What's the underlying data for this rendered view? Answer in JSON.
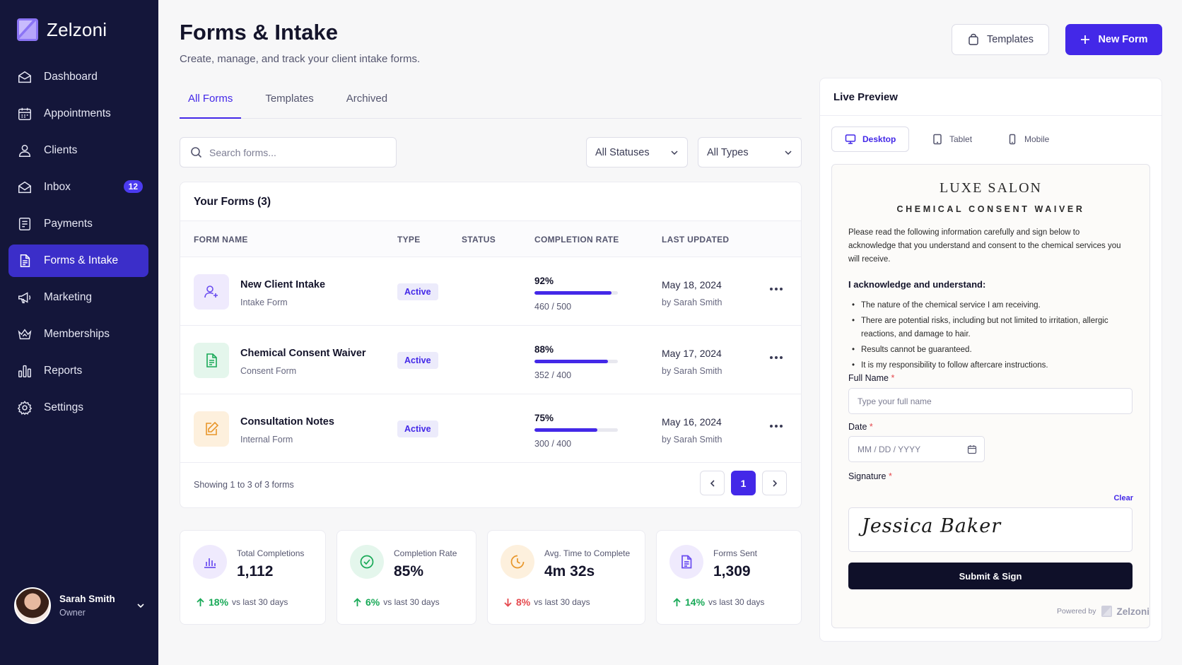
{
  "brand": {
    "name": "Zelzoni"
  },
  "sidebar": {
    "items": [
      {
        "label": "Dashboard",
        "icon": "dashboard-icon"
      },
      {
        "label": "Appointments",
        "icon": "calendar-icon"
      },
      {
        "label": "Clients",
        "icon": "user-icon"
      },
      {
        "label": "Inbox",
        "icon": "inbox-icon",
        "badge": "12"
      },
      {
        "label": "Payments",
        "icon": "receipt-icon"
      },
      {
        "label": "Forms & Intake",
        "icon": "document-icon",
        "active": true
      },
      {
        "label": "Marketing",
        "icon": "megaphone-icon"
      },
      {
        "label": "Memberships",
        "icon": "crown-icon"
      },
      {
        "label": "Reports",
        "icon": "bar-chart-icon"
      },
      {
        "label": "Settings",
        "icon": "gear-icon"
      }
    ]
  },
  "user": {
    "name": "Sarah Smith",
    "role": "Owner"
  },
  "header": {
    "title": "Forms & Intake",
    "subtitle": "Create, manage, and track your client intake forms.",
    "templates_label": "Templates",
    "new_form_label": "New Form"
  },
  "tabs": [
    {
      "label": "All Forms",
      "active": true
    },
    {
      "label": "Templates"
    },
    {
      "label": "Archived"
    }
  ],
  "filters": {
    "search_placeholder": "Search forms...",
    "status_selected": "All Statuses",
    "type_selected": "All Types"
  },
  "forms_table": {
    "title": "Your Forms (3)",
    "columns": [
      "FORM NAME",
      "TYPE",
      "STATUS",
      "COMPLETION RATE",
      "LAST UPDATED"
    ],
    "rows": [
      {
        "name": "New Client Intake",
        "type": "Intake Form",
        "status": "Active",
        "rate_label": "92%",
        "rate": 0.92,
        "count": "460 / 500",
        "date": "May 18, 2024",
        "by": "by Sarah Smith",
        "icon": "user-plus-icon",
        "accent": "#6a4cf0",
        "bg": "#efeafd"
      },
      {
        "name": "Chemical Consent Waiver",
        "type": "Consent Form",
        "status": "Active",
        "rate_label": "88%",
        "rate": 0.88,
        "count": "352 / 400",
        "date": "May 17, 2024",
        "by": "by Sarah Smith",
        "icon": "file-text-icon",
        "accent": "#18a957",
        "bg": "#e4f6ec"
      },
      {
        "name": "Consultation Notes",
        "type": "Internal Form",
        "status": "Active",
        "rate_label": "75%",
        "rate": 0.75,
        "count": "300 / 400",
        "date": "May 16, 2024",
        "by": "by Sarah Smith",
        "icon": "edit-icon",
        "accent": "#e8962a",
        "bg": "#fdf0dd"
      }
    ],
    "showing": "Showing 1 to 3 of 3 forms",
    "current_page": "1"
  },
  "stats": [
    {
      "label": "Total Completions",
      "value": "1,112",
      "trend": "18%",
      "direction": "up",
      "compare": "vs last 30 days",
      "icon": "bar-chart-icon",
      "accent": "#6a4cf0",
      "bg": "#efeafd"
    },
    {
      "label": "Completion Rate",
      "value": "85%",
      "trend": "6%",
      "direction": "up",
      "compare": "vs last 30 days",
      "icon": "check-circle-icon",
      "accent": "#18a957",
      "bg": "#e4f6ec"
    },
    {
      "label": "Avg. Time to Complete",
      "value": "4m 32s",
      "trend": "8%",
      "direction": "down",
      "compare": "vs last 30 days",
      "icon": "clock-icon",
      "accent": "#e8962a",
      "bg": "#fdf0dd"
    },
    {
      "label": "Forms Sent",
      "value": "1,309",
      "trend": "14%",
      "direction": "up",
      "compare": "vs last 30 days",
      "icon": "file-text-icon",
      "accent": "#6a4cf0",
      "bg": "#efeafd"
    }
  ],
  "preview": {
    "title": "Live Preview",
    "devices": [
      {
        "label": "Desktop",
        "icon": "monitor-icon",
        "active": true
      },
      {
        "label": "Tablet",
        "icon": "tablet-icon"
      },
      {
        "label": "Mobile",
        "icon": "mobile-icon"
      }
    ],
    "doc": {
      "brand": "LUXE SALON",
      "title": "CHEMICAL CONSENT WAIVER",
      "intro": "Please read the following information carefully and sign below to acknowledge that you understand and consent to the chemical services you will receive.",
      "ack_heading": "I acknowledge and understand:",
      "ack_items": [
        "The nature of the chemical service I am receiving.",
        "There are potential risks, including but not limited to irritation, allergic reactions, and damage to hair.",
        "Results cannot be guaranteed.",
        "It is my responsibility to follow aftercare instructions."
      ],
      "full_name_label": "Full Name",
      "full_name_placeholder": "Type your full name",
      "date_label": "Date",
      "date_placeholder": "MM / DD / YYYY",
      "signature_label": "Signature",
      "clear_label": "Clear",
      "signature_value": "Jessica Baker",
      "required_mark": "*",
      "submit_label": "Submit & Sign",
      "powered_by": "Powered by",
      "powered_brand": "Zelzoni"
    }
  },
  "colors": {
    "accent": "#4328e8",
    "sidebar": "#14163a",
    "success": "#18a957",
    "danger": "#e5484d"
  }
}
